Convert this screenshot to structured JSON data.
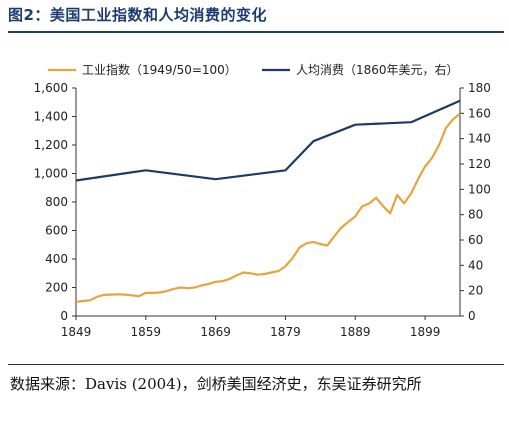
{
  "title": "图2：美国工业指数和人均消费的变化",
  "source": "数据来源：Davis (2004)，剑桥美国经济史，东吴证券研究所",
  "chart_data": {
    "type": "line",
    "xlim": [
      1849,
      1904
    ],
    "x_ticks": [
      1849,
      1859,
      1869,
      1879,
      1889,
      1899
    ],
    "y_left": {
      "lim": [
        0,
        1600
      ],
      "ticks": [
        0,
        200,
        400,
        600,
        800,
        1000,
        1200,
        1400,
        1600
      ],
      "tick_labels": [
        "0",
        "200",
        "400",
        "600",
        "800",
        "1,000",
        "1,200",
        "1,400",
        "1,600"
      ]
    },
    "y_right": {
      "lim": [
        0,
        180
      ],
      "ticks": [
        0,
        20,
        40,
        60,
        80,
        100,
        120,
        140,
        160,
        180
      ],
      "tick_labels": [
        "0",
        "20",
        "40",
        "60",
        "80",
        "100",
        "120",
        "140",
        "160",
        "180"
      ]
    },
    "legend_placement": "top",
    "grid": false,
    "series": [
      {
        "name": "工业指数（1949/50=100）",
        "axis": "left",
        "color": "#e8a33d",
        "points": [
          [
            1849,
            100
          ],
          [
            1850,
            105
          ],
          [
            1851,
            110
          ],
          [
            1852,
            135
          ],
          [
            1853,
            148
          ],
          [
            1854,
            150
          ],
          [
            1855,
            152
          ],
          [
            1856,
            150
          ],
          [
            1857,
            145
          ],
          [
            1858,
            138
          ],
          [
            1859,
            162
          ],
          [
            1860,
            162
          ],
          [
            1861,
            165
          ],
          [
            1862,
            175
          ],
          [
            1863,
            190
          ],
          [
            1864,
            200
          ],
          [
            1865,
            195
          ],
          [
            1866,
            200
          ],
          [
            1867,
            215
          ],
          [
            1868,
            225
          ],
          [
            1869,
            240
          ],
          [
            1870,
            245
          ],
          [
            1871,
            260
          ],
          [
            1872,
            285
          ],
          [
            1873,
            305
          ],
          [
            1874,
            300
          ],
          [
            1875,
            290
          ],
          [
            1876,
            295
          ],
          [
            1877,
            305
          ],
          [
            1878,
            315
          ],
          [
            1879,
            350
          ],
          [
            1880,
            405
          ],
          [
            1881,
            480
          ],
          [
            1882,
            510
          ],
          [
            1883,
            520
          ],
          [
            1884,
            505
          ],
          [
            1885,
            495
          ],
          [
            1886,
            560
          ],
          [
            1887,
            620
          ],
          [
            1888,
            660
          ],
          [
            1889,
            700
          ],
          [
            1890,
            770
          ],
          [
            1891,
            790
          ],
          [
            1892,
            830
          ],
          [
            1893,
            770
          ],
          [
            1894,
            720
          ],
          [
            1895,
            850
          ],
          [
            1896,
            790
          ],
          [
            1897,
            860
          ],
          [
            1898,
            960
          ],
          [
            1899,
            1050
          ],
          [
            1900,
            1110
          ],
          [
            1901,
            1200
          ],
          [
            1902,
            1320
          ],
          [
            1903,
            1380
          ],
          [
            1904,
            1420
          ]
        ]
      },
      {
        "name": "人均消费（1860年美元，右）",
        "axis": "right",
        "color": "#1f3864",
        "points": [
          [
            1849,
            107
          ],
          [
            1859,
            115
          ],
          [
            1869,
            108
          ],
          [
            1879,
            115
          ],
          [
            1883,
            138
          ],
          [
            1889,
            151
          ],
          [
            1897,
            153
          ],
          [
            1904,
            170
          ]
        ]
      }
    ]
  }
}
